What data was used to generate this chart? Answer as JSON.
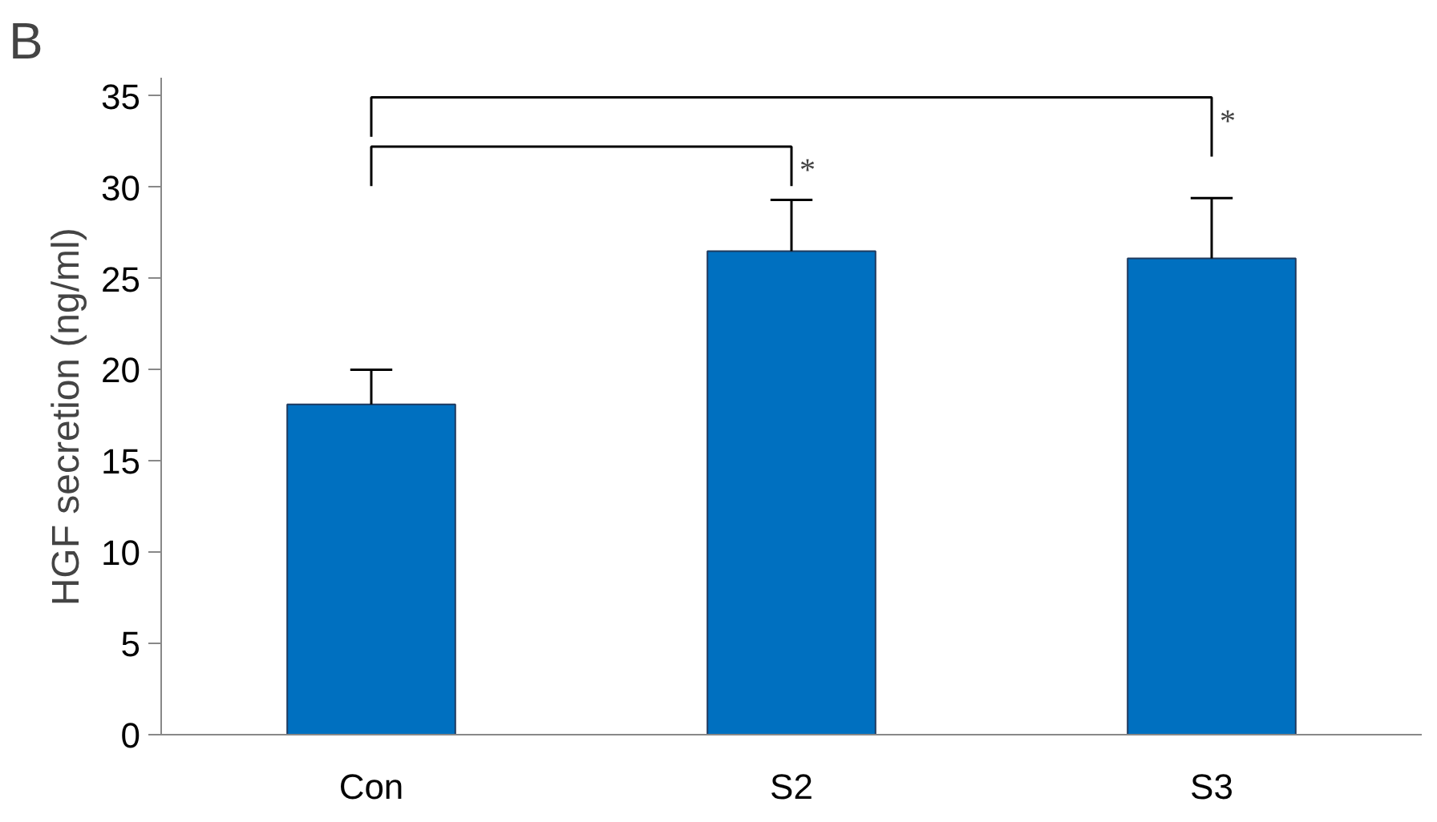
{
  "chart_data": {
    "type": "bar",
    "ylabel": "HGF  secretion  (ng/ml)",
    "categories": [
      "Con",
      "S2",
      "S3"
    ],
    "values": [
      18.1,
      26.5,
      26.1
    ],
    "errors": [
      [
        18.1,
        20.0
      ],
      [
        26.5,
        29.3
      ],
      [
        26.1,
        29.4
      ]
    ],
    "color": "#0070c0",
    "ylim": [
      0,
      36
    ],
    "yticks": [
      0,
      5,
      10,
      15,
      20,
      25,
      30,
      35
    ],
    "grid": false,
    "annotations": [
      "B",
      "*",
      "*"
    ]
  }
}
